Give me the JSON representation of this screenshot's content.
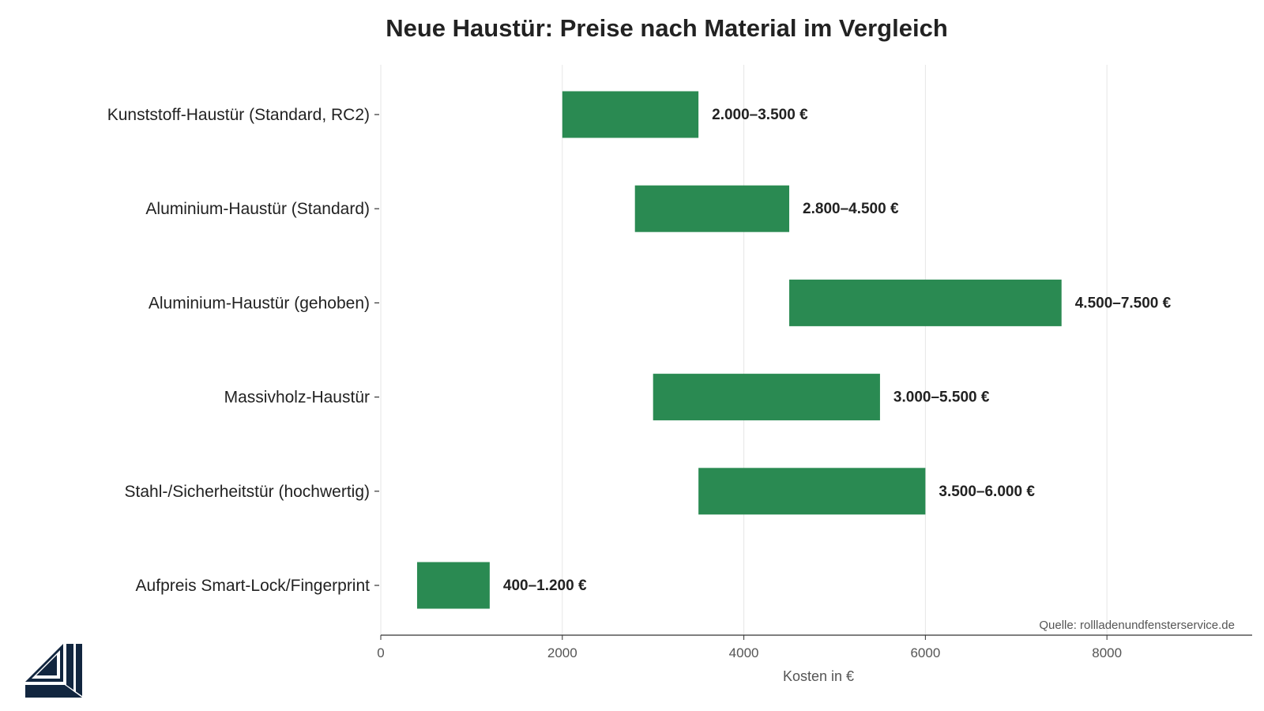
{
  "chart_data": {
    "type": "bar",
    "orientation": "horizontal",
    "title": "Neue Haustür: Preise nach Material im Vergleich",
    "xlabel": "Kosten in €",
    "ylabel": "",
    "xlim": [
      0,
      9600
    ],
    "xticks": [
      0,
      2000,
      4000,
      6000,
      8000
    ],
    "grid": "vertical",
    "bar_color": "#2a8a52",
    "categories": [
      "Kunststoff-Haustür (Standard, RC2)",
      "Aluminium-Haustür (Standard)",
      "Aluminium-Haustür (gehoben)",
      "Massivholz-Haustür",
      "Stahl-/Sicherheitstür (hochwertig)",
      "Aufpreis Smart-Lock/Fingerprint"
    ],
    "ranges": [
      {
        "min": 2000,
        "max": 3500,
        "label": "2.000–3.500 €"
      },
      {
        "min": 2800,
        "max": 4500,
        "label": "2.800–4.500 €"
      },
      {
        "min": 4500,
        "max": 7500,
        "label": "4.500–7.500 €"
      },
      {
        "min": 3000,
        "max": 5500,
        "label": "3.000–5.500 €"
      },
      {
        "min": 3500,
        "max": 6000,
        "label": "3.500–6.000 €"
      },
      {
        "min": 400,
        "max": 1200,
        "label": "400–1.200 €"
      }
    ],
    "source": "Quelle: rollladenundfensterservice.de"
  },
  "logo": {
    "name": "window-logo-icon",
    "color": "#12263f"
  }
}
